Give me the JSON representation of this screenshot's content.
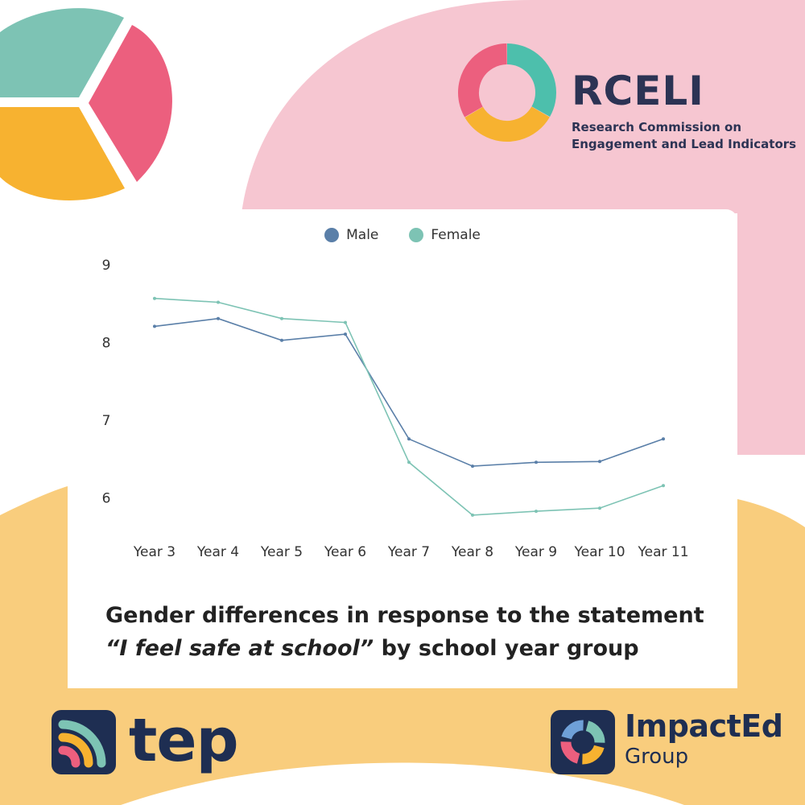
{
  "brand": {
    "colors": {
      "teal": "#7dc3b4",
      "pink": "#ec5f7e",
      "yellow": "#f7b230",
      "navy": "#1e2e52",
      "bg_pink": "#f6c6d1",
      "bg_yellow": "#f9cd7d"
    },
    "rceli": {
      "name": "RCELI",
      "subtitle_line1": "Research Commission on",
      "subtitle_line2": "Engagement and Lead Indicators",
      "icon": "rceli-cycle-icon"
    },
    "tep": {
      "name": "tep",
      "icon": "tep-signal-icon"
    },
    "impacted": {
      "name": "ImpactEd",
      "group": "Group",
      "icon": "impacted-ring-icon"
    }
  },
  "chart_data": {
    "type": "line",
    "categories": [
      "Year 3",
      "Year 4",
      "Year 5",
      "Year 6",
      "Year 7",
      "Year 8",
      "Year 9",
      "Year 10",
      "Year 11"
    ],
    "series": [
      {
        "name": "Male",
        "color": "#5a7fa8",
        "values": [
          8.2,
          8.3,
          8.02,
          8.1,
          6.75,
          6.4,
          6.45,
          6.46,
          6.75
        ]
      },
      {
        "name": "Female",
        "color": "#7dc3b4",
        "values": [
          8.56,
          8.51,
          8.3,
          8.25,
          6.45,
          5.77,
          5.82,
          5.86,
          6.15
        ]
      }
    ],
    "yticks": [
      6,
      7,
      8,
      9
    ],
    "ylim": [
      5.6,
      9
    ],
    "grid": false,
    "legend_position": "top-center",
    "caption_line1": "Gender differences in response to the statement",
    "caption_quote": "“I feel safe at school”",
    "caption_rest": " by school year group"
  }
}
